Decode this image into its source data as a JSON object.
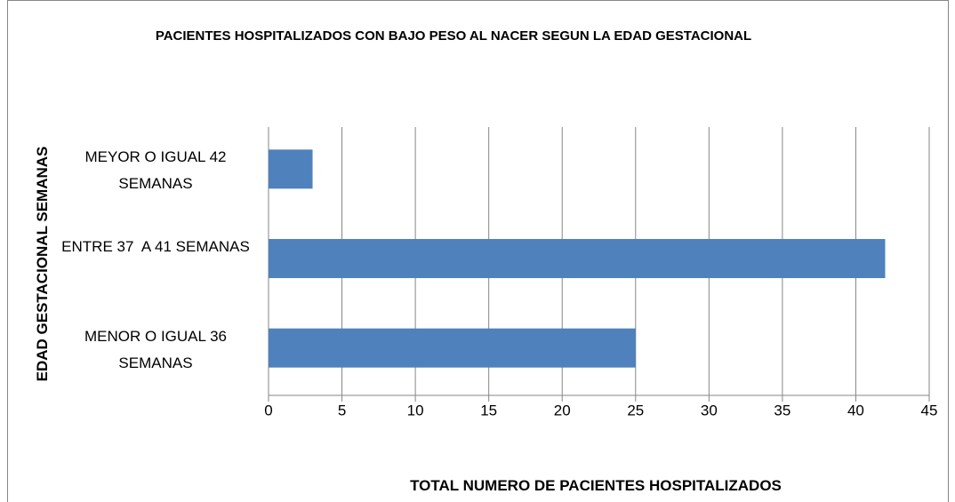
{
  "chart_data": {
    "type": "bar",
    "orientation": "horizontal",
    "title": "PACIENTES HOSPITALIZADOS CON BAJO PESO AL NACER SEGUN LA EDAD GESTACIONAL",
    "x_label": "TOTAL NUMERO DE PACIENTES HOSPITALIZADOS",
    "y_label": "EDAD GESTACIONAL SEMANAS",
    "categories": [
      "MEYOR O IGUAL 42 SEMANAS",
      "ENTRE 37  A 41 SEMANAS",
      "MENOR O IGUAL 36 SEMANAS"
    ],
    "values": [
      3,
      42,
      25
    ],
    "color": "#4f81bd",
    "xlim": [
      0,
      45
    ],
    "xticks": [
      0,
      5,
      10,
      15,
      20,
      25,
      30,
      35,
      40,
      45
    ],
    "grid": true
  }
}
